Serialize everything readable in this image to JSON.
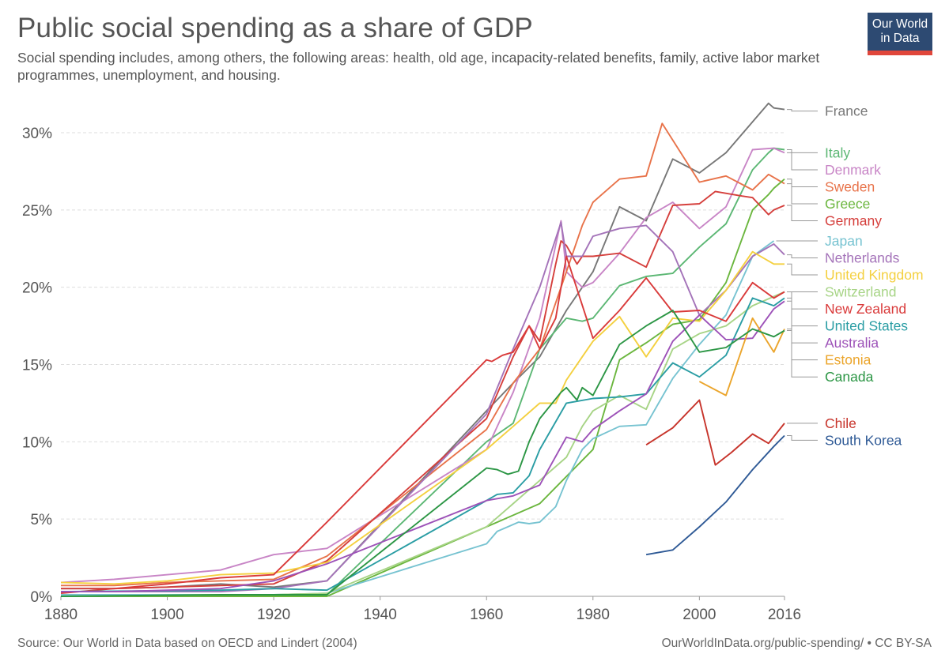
{
  "title": "Public social spending as a share of GDP",
  "subtitle": "Social spending includes, among others, the following areas: health, old age, incapacity-related benefits, family, active labor market programmes, unemployment, and housing.",
  "logo": {
    "line1": "Our World",
    "line2": "in Data"
  },
  "footer": {
    "source": "Source: Our World in Data based on OECD and Lindert (2004)",
    "credit": "OurWorldInData.org/public-spending/ • CC BY-SA"
  },
  "chart_data": {
    "type": "line",
    "x_ticks": [
      1880,
      1900,
      1920,
      1940,
      1960,
      1980,
      2000,
      2016
    ],
    "x_tick_labels": [
      "1880",
      "1900",
      "1920",
      "1940",
      "1960",
      "1980",
      "2000",
      "2016"
    ],
    "y_ticks": [
      0,
      5,
      10,
      15,
      20,
      25,
      30
    ],
    "y_tick_labels": [
      "0%",
      "5%",
      "10%",
      "15%",
      "20%",
      "25%",
      "30%"
    ],
    "xlim": [
      1880,
      2016
    ],
    "ylim": [
      0,
      30
    ],
    "grid": true,
    "legend_placement": "right (line-end labels)",
    "series": [
      {
        "name": "France",
        "color": "#777777",
        "x": [
          1880,
          1890,
          1900,
          1910,
          1920,
          1930,
          1960,
          1965,
          1970,
          1975,
          1980,
          1985,
          1990,
          1995,
          2000,
          2005,
          2010,
          2013,
          2014,
          2016
        ],
        "y": [
          0.5,
          0.5,
          0.6,
          0.8,
          0.6,
          1.0,
          12.0,
          13.8,
          15.5,
          18.5,
          21.0,
          25.2,
          24.3,
          28.3,
          27.4,
          28.7,
          30.7,
          31.9,
          31.6,
          31.5
        ]
      },
      {
        "name": "Italy",
        "color": "#5cb774",
        "x": [
          1880,
          1890,
          1900,
          1910,
          1920,
          1930,
          1960,
          1965,
          1970,
          1975,
          1978,
          1980,
          1985,
          1990,
          1995,
          2000,
          2005,
          2010,
          2013,
          2014,
          2016
        ],
        "y": [
          0,
          0,
          0,
          0,
          0.1,
          0.1,
          10.0,
          11.2,
          16.0,
          18.0,
          17.8,
          18.0,
          20.1,
          20.7,
          20.9,
          22.6,
          24.1,
          27.6,
          28.7,
          29.0,
          28.9
        ]
      },
      {
        "name": "Denmark",
        "color": "#c885c6",
        "x": [
          1880,
          1890,
          1900,
          1910,
          1920,
          1930,
          1960,
          1965,
          1970,
          1974,
          1975,
          1978,
          1980,
          1985,
          1990,
          1995,
          2000,
          2005,
          2010,
          2014,
          2016
        ],
        "y": [
          0.9,
          1.1,
          1.4,
          1.7,
          2.7,
          3.1,
          9.5,
          13.2,
          18.0,
          24.3,
          21.0,
          20.0,
          20.3,
          22.2,
          24.5,
          25.5,
          23.8,
          25.2,
          28.9,
          29.0,
          28.7
        ]
      },
      {
        "name": "Sweden",
        "color": "#e8734a",
        "x": [
          1880,
          1890,
          1900,
          1910,
          1920,
          1930,
          1960,
          1965,
          1970,
          1975,
          1978,
          1980,
          1985,
          1990,
          1993,
          2000,
          2005,
          2010,
          2013,
          2014,
          2016
        ],
        "y": [
          0.7,
          0.7,
          0.9,
          1.0,
          1.1,
          2.6,
          10.8,
          13.8,
          16.0,
          21.0,
          24.0,
          25.5,
          27.0,
          27.2,
          30.6,
          26.8,
          27.2,
          26.3,
          27.3,
          27.1,
          26.7
        ]
      },
      {
        "name": "Greece",
        "color": "#6bb63e",
        "x": [
          1880,
          1910,
          1930,
          1960,
          1970,
          1980,
          1985,
          1990,
          1995,
          2000,
          2005,
          2010,
          2013,
          2014,
          2016
        ],
        "y": [
          0,
          0,
          0,
          4.5,
          6.0,
          9.5,
          15.3,
          16.4,
          17.6,
          17.9,
          20.3,
          25.0,
          26.0,
          26.4,
          27.0
        ]
      },
      {
        "name": "Germany",
        "color": "#d53f3c",
        "x": [
          1880,
          1890,
          1900,
          1910,
          1920,
          1930,
          1960,
          1965,
          1968,
          1970,
          1973,
          1974,
          1975,
          1977,
          1978,
          1980,
          1985,
          1990,
          1995,
          2000,
          2003,
          2008,
          2010,
          2013,
          2014,
          2016
        ],
        "y": [
          0.5,
          0.5,
          0.6,
          0.7,
          0.8,
          2.3,
          11.5,
          15.5,
          17.5,
          16.5,
          21.5,
          23.0,
          22.7,
          21.5,
          22.0,
          22.0,
          22.2,
          21.3,
          25.3,
          25.4,
          26.2,
          25.9,
          25.8,
          24.7,
          25.0,
          25.3
        ]
      },
      {
        "name": "Japan",
        "color": "#77c3d1",
        "x": [
          1880,
          1910,
          1920,
          1930,
          1960,
          1962,
          1964,
          1966,
          1968,
          1970,
          1973,
          1975,
          1978,
          1980,
          1985,
          1990,
          1995,
          2000,
          2005,
          2010,
          2014
        ],
        "y": [
          0.1,
          0.1,
          0.1,
          0.2,
          3.4,
          4.2,
          4.5,
          4.8,
          4.7,
          4.8,
          5.8,
          7.5,
          9.5,
          10.2,
          11.0,
          11.1,
          14.1,
          16.3,
          18.2,
          22.0,
          23.0
        ]
      },
      {
        "name": "Netherlands",
        "color": "#a473b9",
        "x": [
          1880,
          1900,
          1910,
          1920,
          1930,
          1960,
          1965,
          1970,
          1974,
          1975,
          1978,
          1980,
          1985,
          1990,
          1995,
          2000,
          2005,
          2010,
          2013,
          2014,
          2016
        ],
        "y": [
          0.3,
          0.3,
          0.3,
          0.5,
          1.0,
          11.8,
          16.0,
          20.0,
          24.2,
          22.0,
          22.0,
          23.3,
          23.8,
          24.0,
          22.3,
          18.2,
          19.8,
          22.0,
          22.6,
          22.8,
          22.1
        ]
      },
      {
        "name": "United Kingdom",
        "color": "#f4d03f",
        "x": [
          1880,
          1890,
          1900,
          1910,
          1920,
          1930,
          1960,
          1965,
          1970,
          1973,
          1975,
          1978,
          1980,
          1985,
          1990,
          1995,
          2000,
          2005,
          2010,
          2014,
          2016
        ],
        "y": [
          0.9,
          0.8,
          1.0,
          1.4,
          1.5,
          2.2,
          9.5,
          11.0,
          12.5,
          12.5,
          14.0,
          15.5,
          16.5,
          18.1,
          15.5,
          18.0,
          17.8,
          19.8,
          22.3,
          21.5,
          21.5
        ]
      },
      {
        "name": "Switzerland",
        "color": "#a7d486",
        "x": [
          1880,
          1910,
          1920,
          1930,
          1960,
          1965,
          1970,
          1975,
          1978,
          1980,
          1985,
          1990,
          1995,
          2000,
          2005,
          2010,
          2014,
          2016
        ],
        "y": [
          0,
          0.1,
          0.1,
          0.2,
          4.5,
          6.0,
          7.5,
          9.0,
          11.0,
          12.0,
          13.0,
          12.1,
          16.0,
          17.0,
          17.5,
          18.8,
          19.4,
          19.7
        ]
      },
      {
        "name": "New Zealand",
        "color": "#d93a3a",
        "x": [
          1880,
          1900,
          1910,
          1920,
          1930,
          1960,
          1961,
          1962,
          1963,
          1965,
          1968,
          1970,
          1973,
          1975,
          1980,
          1985,
          1990,
          1995,
          2000,
          2005,
          2010,
          2014,
          2016
        ],
        "y": [
          0.2,
          0.8,
          1.2,
          1.4,
          4.8,
          15.3,
          15.2,
          15.4,
          15.6,
          15.8,
          17.5,
          16.0,
          18.0,
          22.0,
          16.7,
          18.5,
          20.6,
          18.4,
          18.5,
          17.8,
          20.3,
          19.3,
          19.7
        ]
      },
      {
        "name": "United States",
        "color": "#2a9da4",
        "x": [
          1880,
          1910,
          1920,
          1930,
          1960,
          1962,
          1965,
          1968,
          1970,
          1975,
          1980,
          1985,
          1990,
          1995,
          2000,
          2005,
          2010,
          2014,
          2016
        ],
        "y": [
          0.3,
          0.4,
          0.5,
          0.4,
          6.2,
          6.6,
          6.7,
          7.8,
          9.5,
          12.5,
          12.8,
          12.9,
          13.1,
          15.1,
          14.2,
          15.6,
          19.3,
          18.8,
          19.3
        ]
      },
      {
        "name": "Australia",
        "color": "#9d52b8",
        "x": [
          1880,
          1890,
          1900,
          1910,
          1920,
          1930,
          1960,
          1965,
          1970,
          1975,
          1978,
          1980,
          1985,
          1990,
          1995,
          2000,
          2005,
          2010,
          2014,
          2016
        ],
        "y": [
          0.3,
          0.3,
          0.4,
          0.5,
          1.0,
          2.1,
          6.2,
          6.5,
          7.2,
          10.3,
          10.0,
          10.8,
          12.0,
          13.1,
          16.5,
          18.2,
          16.6,
          16.7,
          18.6,
          19.1
        ]
      },
      {
        "name": "Estonia",
        "color": "#eba52c",
        "x": [
          2000,
          2005,
          2010,
          2014,
          2016
        ],
        "y": [
          13.9,
          13.0,
          18.0,
          15.8,
          17.3
        ]
      },
      {
        "name": "Canada",
        "color": "#2c9645",
        "x": [
          1880,
          1910,
          1920,
          1930,
          1960,
          1962,
          1964,
          1966,
          1968,
          1970,
          1974,
          1975,
          1977,
          1978,
          1980,
          1985,
          1990,
          1995,
          2000,
          2005,
          2010,
          2014,
          2016
        ],
        "y": [
          0,
          0.1,
          0.1,
          0.1,
          8.3,
          8.2,
          7.9,
          8.1,
          10.0,
          11.5,
          13.2,
          13.5,
          12.7,
          13.5,
          13.0,
          16.3,
          17.5,
          18.5,
          15.8,
          16.1,
          17.3,
          16.8,
          17.2
        ]
      },
      {
        "name": "Chile",
        "color": "#c7342b",
        "x": [
          1990,
          1995,
          2000,
          2003,
          2006,
          2010,
          2013,
          2016
        ],
        "y": [
          9.8,
          10.9,
          12.7,
          8.5,
          9.3,
          10.5,
          9.9,
          11.2
        ]
      },
      {
        "name": "South Korea",
        "color": "#2f5a96",
        "x": [
          1990,
          1995,
          2000,
          2005,
          2010,
          2014,
          2016
        ],
        "y": [
          2.7,
          3.0,
          4.5,
          6.1,
          8.2,
          9.7,
          10.4
        ]
      }
    ],
    "legend_label_y": [
      31.4,
      28.7,
      27.6,
      26.5,
      25.4,
      24.3,
      23.0,
      21.9,
      20.8,
      19.7,
      18.6,
      17.5,
      16.4,
      15.3,
      14.2,
      11.2,
      10.1
    ]
  }
}
